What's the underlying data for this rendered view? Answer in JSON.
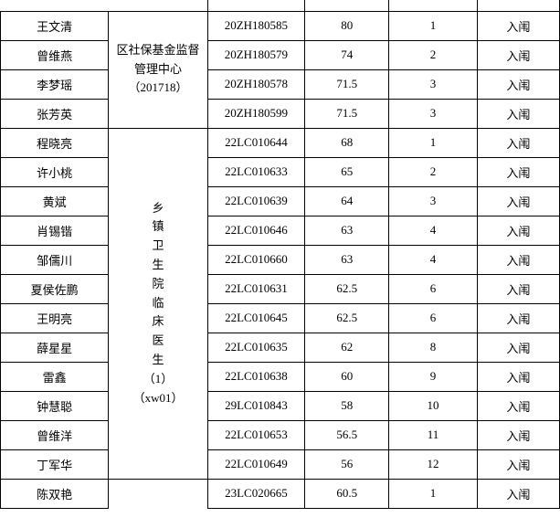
{
  "group1_col1_text": "区社保基金监督管理中心（201718）",
  "group1_rows": [
    {
      "name": "王文清",
      "code": "20ZH180585",
      "score": "80",
      "rank": "1",
      "status": "入闱"
    },
    {
      "name": "曾维燕",
      "code": "20ZH180579",
      "score": "74",
      "rank": "2",
      "status": "入闱"
    },
    {
      "name": "李梦瑶",
      "code": "20ZH180578",
      "score": "71.5",
      "rank": "3",
      "status": "入闱"
    },
    {
      "name": "张芳英",
      "code": "20ZH180599",
      "score": "71.5",
      "rank": "3",
      "status": "入闱"
    }
  ],
  "group2_col1_lines": [
    "乡",
    "镇",
    "卫",
    "生",
    "院",
    "临",
    "床",
    "医",
    "生",
    "（1）",
    "（xw01）"
  ],
  "group2_rows": [
    {
      "name": "程晓亮",
      "code": "22LC010644",
      "score": "68",
      "rank": "1",
      "status": "入闱"
    },
    {
      "name": "许小桃",
      "code": "22LC010633",
      "score": "65",
      "rank": "2",
      "status": "入闱"
    },
    {
      "name": "黄斌",
      "code": "22LC010639",
      "score": "64",
      "rank": "3",
      "status": "入闱"
    },
    {
      "name": "肖锡锴",
      "code": "22LC010646",
      "score": "63",
      "rank": "4",
      "status": "入闱"
    },
    {
      "name": "邹儒川",
      "code": "22LC010660",
      "score": "63",
      "rank": "4",
      "status": "入闱"
    },
    {
      "name": "夏侯佐鹏",
      "code": "22LC010631",
      "score": "62.5",
      "rank": "6",
      "status": "入闱"
    },
    {
      "name": "王明亮",
      "code": "22LC010645",
      "score": "62.5",
      "rank": "6",
      "status": "入闱"
    },
    {
      "name": "薛星星",
      "code": "22LC010635",
      "score": "62",
      "rank": "8",
      "status": "入闱"
    },
    {
      "name": "雷鑫",
      "code": "22LC010638",
      "score": "60",
      "rank": "9",
      "status": "入闱"
    },
    {
      "name": "钟慧聪",
      "code": "29LC010843",
      "score": "58",
      "rank": "10",
      "status": "入闱"
    },
    {
      "name": "曾维洋",
      "code": "22LC010653",
      "score": "56.5",
      "rank": "11",
      "status": "入闱"
    },
    {
      "name": "丁军华",
      "code": "22LC010649",
      "score": "56",
      "rank": "12",
      "status": "入闱"
    }
  ],
  "group3_col1_text": "",
  "group3_rows": [
    {
      "name": "陈双艳",
      "code": "23LC020665",
      "score": "60.5",
      "rank": "1",
      "status": "入闱"
    }
  ]
}
